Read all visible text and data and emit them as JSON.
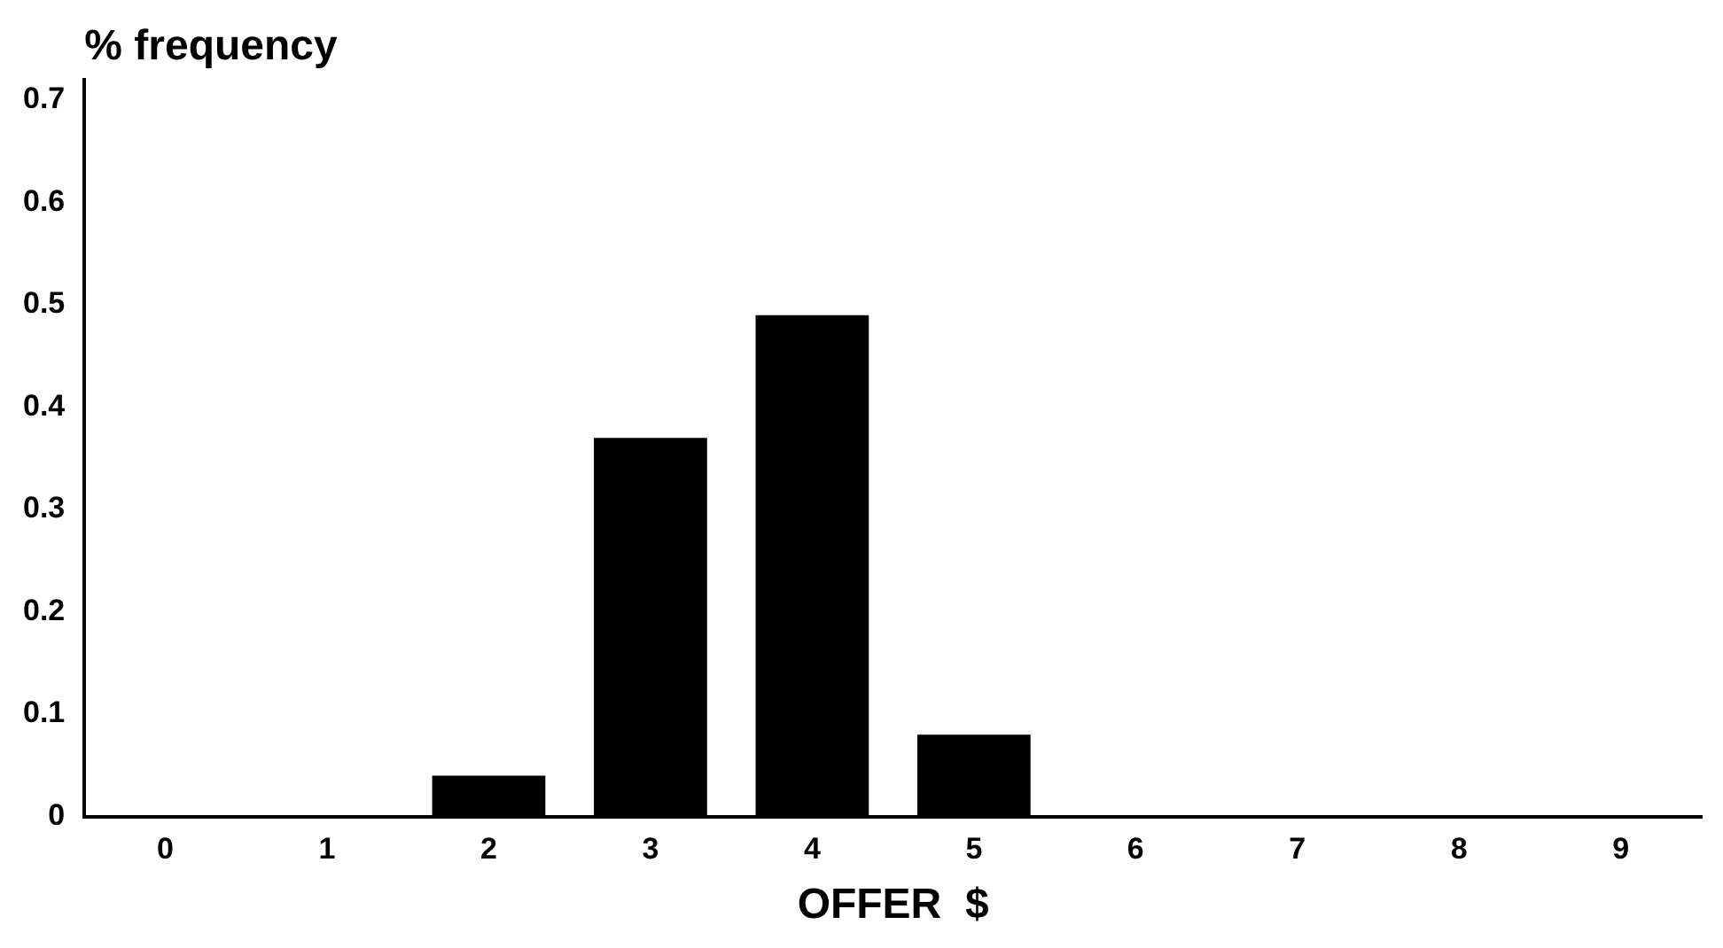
{
  "chart_data": {
    "type": "bar",
    "ylabel": "% frequency",
    "xlabel": "OFFER  $",
    "categories": [
      "0",
      "1",
      "2",
      "3",
      "4",
      "5",
      "6",
      "7",
      "8",
      "9"
    ],
    "values": [
      0,
      0,
      0.04,
      0.37,
      0.49,
      0.08,
      0,
      0,
      0,
      0
    ],
    "color": "#000000",
    "ylim": [
      0,
      0.72
    ],
    "yticks": [
      0,
      0.1,
      0.2,
      0.3,
      0.4,
      0.5,
      0.6,
      0.7
    ],
    "grid": false,
    "legend": false
  }
}
